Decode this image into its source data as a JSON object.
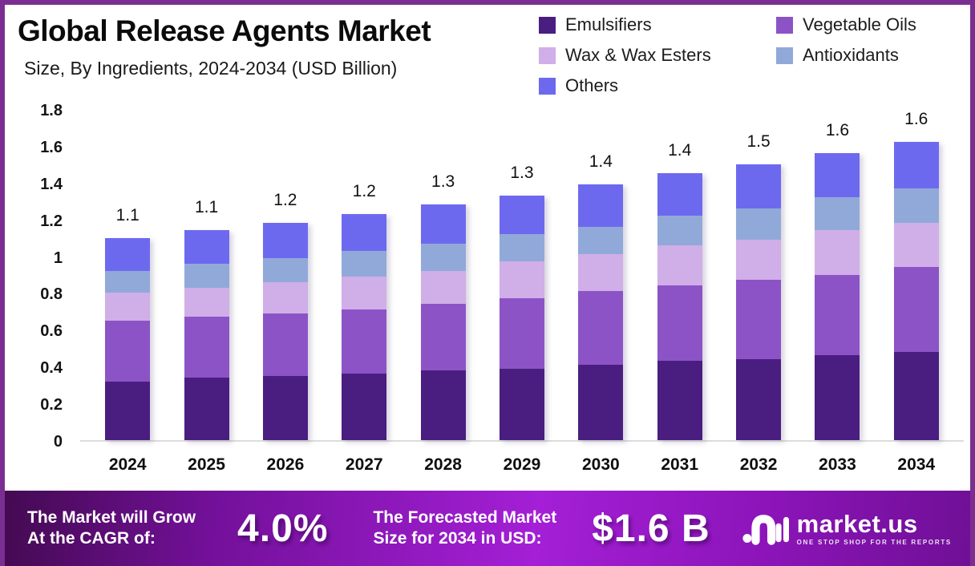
{
  "header": {
    "title": "Global Release Agents Market",
    "subtitle": "Size, By Ingredients, 2024-2034 (USD Billion)"
  },
  "legend": {
    "items": [
      {
        "label": "Emulsifiers",
        "color": "#4A1E80"
      },
      {
        "label": "Vegetable Oils",
        "color": "#8C53C6"
      },
      {
        "label": "Wax & Wax Esters",
        "color": "#D0AEE8"
      },
      {
        "label": "Antioxidants",
        "color": "#91A9D9"
      },
      {
        "label": "Others",
        "color": "#6D69EF"
      }
    ]
  },
  "chart_data": {
    "type": "bar",
    "stacked": true,
    "title": "Global Release Agents Market Size, By Ingredients, 2024-2034 (USD Billion)",
    "unit": "USD Billion",
    "categories": [
      "2024",
      "2025",
      "2026",
      "2027",
      "2028",
      "2029",
      "2030",
      "2031",
      "2032",
      "2033",
      "2034"
    ],
    "series": [
      {
        "name": "Emulsifiers",
        "color": "#4A1E80",
        "values": [
          0.32,
          0.34,
          0.35,
          0.36,
          0.38,
          0.39,
          0.41,
          0.43,
          0.44,
          0.46,
          0.48
        ]
      },
      {
        "name": "Vegetable Oils",
        "color": "#8C53C6",
        "values": [
          0.33,
          0.33,
          0.34,
          0.35,
          0.36,
          0.38,
          0.4,
          0.41,
          0.43,
          0.44,
          0.46
        ]
      },
      {
        "name": "Wax & Wax Esters",
        "color": "#D0AEE8",
        "values": [
          0.15,
          0.16,
          0.17,
          0.18,
          0.18,
          0.2,
          0.2,
          0.22,
          0.22,
          0.24,
          0.24
        ]
      },
      {
        "name": "Antioxidants",
        "color": "#91A9D9",
        "values": [
          0.12,
          0.13,
          0.13,
          0.14,
          0.15,
          0.15,
          0.15,
          0.16,
          0.17,
          0.18,
          0.19
        ]
      },
      {
        "name": "Others",
        "color": "#6D69EF",
        "values": [
          0.18,
          0.18,
          0.19,
          0.2,
          0.21,
          0.21,
          0.23,
          0.23,
          0.24,
          0.24,
          0.25
        ]
      }
    ],
    "total_labels": [
      "1.1",
      "1.1",
      "1.2",
      "1.2",
      "1.3",
      "1.3",
      "1.4",
      "1.4",
      "1.5",
      "1.6",
      "1.6"
    ],
    "ylim": [
      0,
      1.8
    ],
    "yticks": [
      1.8,
      1.6,
      1.4,
      1.2,
      1,
      0.8,
      0.6,
      0.4,
      0.2,
      0
    ],
    "grid": false,
    "legend_position": "top-right"
  },
  "banner": {
    "cagr_line1": "The Market will Grow",
    "cagr_line2": "At the CAGR of:",
    "cagr_value": "4.0%",
    "forecast_line1": "The Forecasted Market",
    "forecast_line2": "Size for 2034 in USD:",
    "forecast_value": "$1.6 B",
    "brand": "market.us",
    "brand_tagline": "ONE STOP SHOP FOR THE REPORTS"
  },
  "colors": {
    "frame_border": "#7B2E92",
    "banner_gradient": [
      "#430A50",
      "#A41FD6",
      "#6F0F95"
    ],
    "axis_baseline": "#DCDCDC"
  }
}
